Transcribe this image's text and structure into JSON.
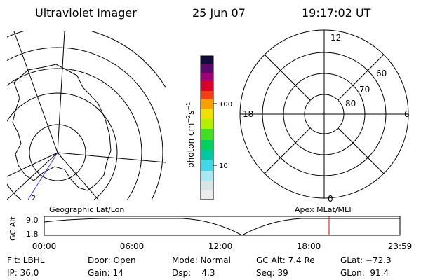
{
  "header": {
    "instrument": "Ultraviolet Imager",
    "date": "25 Jun 07",
    "time": "19:17:02 UT"
  },
  "geo_map": {
    "label": "2"
  },
  "colorbar": {
    "unit": {
      "text": "photon cm",
      "exp1": "−2",
      "mid": "s",
      "exp2": "−1"
    },
    "ticks": [
      "100",
      "10"
    ]
  },
  "polar": {
    "labels": [
      "12",
      "60",
      "70",
      "80",
      "18",
      "6",
      "0"
    ]
  },
  "timeline": {
    "left_title": "Geographic Lat/Lon",
    "right_title": "Apex MLat/MLT",
    "y_label": "GC Alt",
    "y_ticks": [
      "9.0",
      "1.8"
    ],
    "x_ticks": [
      "00:00",
      "06:00",
      "12:00",
      "18:00",
      "23:59"
    ]
  },
  "footer": {
    "rows": [
      [
        "Flt: LBHL",
        "Door: Open",
        "Mode: Normal",
        "GC Alt: 7.4 Re",
        "GLat: −72.3"
      ],
      [
        "IP: 36.0",
        "Gain: 14",
        "Dsp:    4.3",
        "Seq: 39",
        "GLon:  91.4"
      ]
    ]
  }
}
